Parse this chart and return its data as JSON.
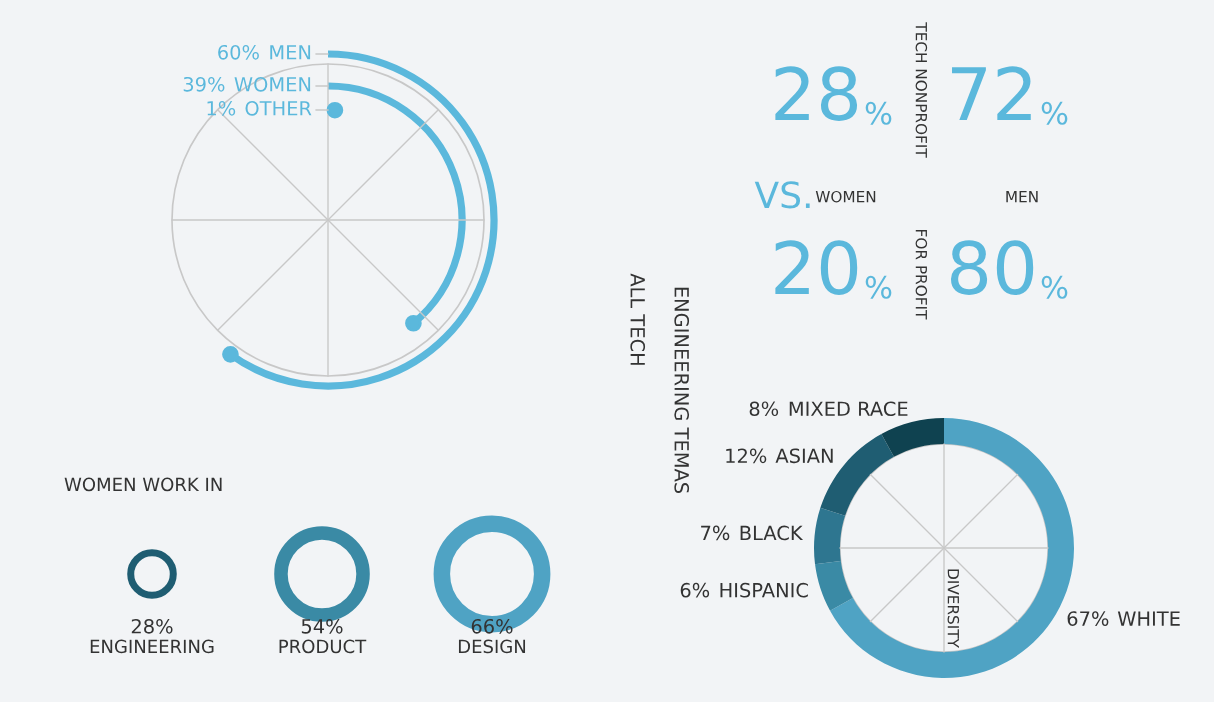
{
  "chart_data": [
    {
      "type": "other",
      "categories": [
        "MEN",
        "WOMEN",
        "OTHER"
      ],
      "values": [
        60,
        39,
        1
      ],
      "value_labels": [
        "60%",
        "39%",
        "1%"
      ],
      "colors": [
        "#5bb8dc",
        "#5bb8dc",
        "#5bb8dc"
      ],
      "annotations": [
        "ALL TECH"
      ]
    },
    {
      "type": "other",
      "categories": [
        "WOMEN",
        "MEN"
      ],
      "series": [
        {
          "name": "TECH NONPROFIT",
          "values": [
            28,
            72
          ],
          "value_labels": [
            "28%",
            "72%"
          ]
        },
        {
          "name": "FOR PROFIT",
          "values": [
            20,
            80
          ],
          "value_labels": [
            "20%",
            "80%"
          ]
        }
      ],
      "colors": [
        "#5bb8dc",
        "#5bb8dc"
      ],
      "annotations": [
        "VS."
      ]
    },
    {
      "type": "other",
      "title": "WOMEN WORK IN",
      "categories": [
        "ENGINEERING",
        "PRODUCT",
        "DESIGN"
      ],
      "values": [
        28,
        54,
        66
      ],
      "value_labels": [
        "28%",
        "54%",
        "66%"
      ],
      "colors": [
        "#1f5d72",
        "#3a8aa5",
        "#4fa3c4"
      ]
    },
    {
      "type": "donut",
      "categories": [
        "WHITE",
        "HISPANIC",
        "BLACK",
        "ASIAN",
        "MIXED RACE"
      ],
      "values": [
        67,
        6,
        7,
        12,
        8
      ],
      "value_labels": [
        "67%",
        "6%",
        "7%",
        "12%",
        "8%"
      ],
      "colors": [
        "#4fa3c4",
        "#3a8aa5",
        "#2e7690",
        "#1f5d72",
        "#0f4250"
      ],
      "annotations": [
        "DIVERSITY",
        "ENGINEERING TEMAS"
      ]
    }
  ]
}
